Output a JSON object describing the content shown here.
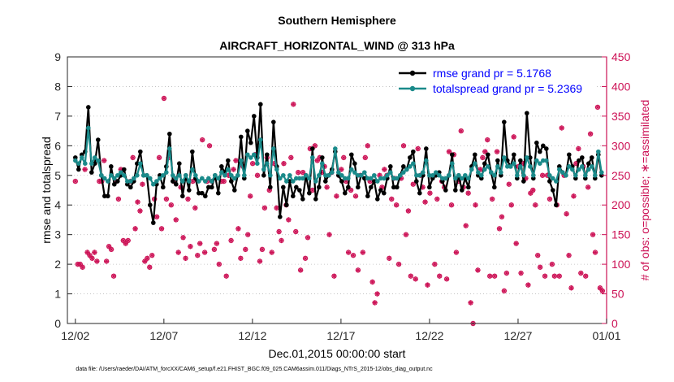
{
  "chart_data": {
    "type": "line",
    "title": "Southern Hemisphere",
    "subtitle": "AIRCRAFT_HORIZONTAL_WIND @ 313 hPa",
    "xlabel": "Dec.01,2015 00:00:00 start",
    "ylabel": "rmse and totalspread",
    "ylabel_right": "# of obs: o=possible; ∗=assimilated",
    "footnote": "data file: /Users/raeder/DAI/ATM_forcXX/CAM6_setup/f.e21.FHIST_BGC.f09_025.CAM6assim.011/Diags_NTrS_2015-12/obs_diag_output.nc",
    "x_ticks": [
      "12/02",
      "12/07",
      "12/12",
      "12/17",
      "12/22",
      "12/27",
      "01/01"
    ],
    "x_tick_days": [
      1,
      6,
      11,
      16,
      21,
      26,
      31
    ],
    "xlim": [
      0.55,
      31
    ],
    "ylim": [
      0,
      9
    ],
    "y_ticks": [
      "0",
      "1",
      "2",
      "3",
      "4",
      "5",
      "6",
      "7",
      "8",
      "9"
    ],
    "ylim_right": [
      0,
      450
    ],
    "y_ticks_right": [
      "0",
      "50",
      "100",
      "150",
      "200",
      "250",
      "300",
      "350",
      "400",
      "450"
    ],
    "colors": {
      "rmse": "#000000",
      "spread": "#1a8a8a",
      "obs": "#cc1155",
      "legend_text": "#0000ff"
    },
    "series": [
      {
        "name": "rmse grand pr = 5.1768",
        "key": "rmse",
        "values": [
          5.6,
          5.2,
          5.7,
          5.8,
          7.3,
          5.1,
          5.4,
          6.2,
          5.0,
          4.3,
          4.3,
          5.3,
          4.7,
          4.8,
          5.0,
          5.2,
          4.7,
          4.6,
          4.8,
          5.4,
          5.8,
          5.0,
          5.0,
          4.0,
          3.4,
          4.7,
          5.0,
          4.6,
          5.3,
          6.4,
          4.8,
          4.7,
          5.4,
          4.3,
          5.0,
          4.5,
          5.8,
          4.9,
          4.4,
          4.4,
          4.3,
          4.6,
          4.6,
          5.0,
          4.4,
          5.3,
          5.1,
          5.5,
          4.8,
          4.5,
          5.0,
          6.3,
          4.9,
          6.5,
          6.1,
          7.0,
          5.6,
          7.4,
          5.0,
          5.7,
          4.6,
          6.8,
          5.3,
          3.6,
          4.6,
          4.0,
          4.8,
          4.3,
          4.6,
          4.5,
          4.2,
          5.0,
          4.4,
          5.9,
          4.2,
          4.6,
          5.6,
          4.8,
          5.0,
          5.2,
          5.8,
          5.0,
          4.8,
          4.4,
          4.6,
          5.7,
          5.4,
          4.6,
          5.0,
          4.9,
          4.3,
          4.6,
          4.8,
          4.2,
          4.5,
          4.4,
          4.9,
          5.3,
          4.6,
          4.6,
          5.0,
          5.3,
          5.2,
          5.6,
          5.8,
          4.8,
          4.4,
          5.0,
          5.9,
          4.6,
          4.9,
          5.0,
          5.1,
          4.8,
          4.5,
          5.0,
          5.7,
          4.5,
          5.0,
          4.5,
          4.9,
          4.6,
          5.3,
          5.7,
          5.0,
          4.9,
          5.4,
          5.7,
          5.1,
          4.6,
          5.5,
          5.0,
          6.8,
          5.5,
          5.3,
          5.7,
          4.9,
          5.5,
          4.8,
          7.1,
          5.6,
          4.9,
          6.1,
          5.8,
          6.0,
          5.9,
          4.8,
          4.5,
          4.0,
          5.3,
          5.1,
          5.0,
          5.7,
          5.3,
          4.9,
          5.5,
          5.6,
          4.9,
          5.4,
          5.6,
          4.9,
          5.7,
          5.0
        ]
      },
      {
        "name": "totalspread grand pr = 5.2369",
        "key": "spread",
        "values": [
          5.5,
          5.4,
          5.6,
          5.4,
          6.6,
          5.4,
          5.6,
          5.5,
          5.0,
          4.9,
          4.8,
          5.0,
          4.9,
          5.0,
          5.1,
          5.0,
          4.8,
          4.8,
          4.9,
          5.0,
          5.4,
          5.0,
          5.0,
          4.9,
          4.7,
          4.8,
          4.9,
          5.0,
          5.1,
          5.9,
          5.0,
          4.9,
          5.0,
          4.8,
          5.0,
          4.8,
          5.2,
          5.0,
          4.8,
          4.9,
          4.8,
          4.9,
          4.8,
          5.0,
          4.9,
          5.1,
          5.0,
          5.2,
          5.0,
          4.9,
          5.0,
          5.5,
          5.0,
          5.7,
          5.6,
          5.7,
          5.4,
          6.2,
          5.2,
          5.4,
          5.0,
          5.9,
          5.2,
          4.9,
          5.0,
          4.8,
          5.0,
          4.8,
          4.9,
          4.9,
          4.9,
          5.0,
          4.9,
          5.6,
          4.8,
          5.0,
          5.4,
          5.0,
          5.0,
          5.1,
          5.9,
          5.1,
          5.0,
          4.9,
          4.9,
          5.2,
          5.1,
          5.0,
          5.0,
          5.1,
          4.9,
          4.9,
          5.0,
          4.8,
          4.9,
          4.9,
          5.0,
          5.1,
          4.9,
          4.9,
          5.0,
          5.1,
          5.2,
          5.3,
          5.4,
          5.0,
          5.0,
          5.1,
          5.5,
          5.0,
          5.0,
          5.1,
          5.0,
          4.9,
          4.9,
          5.0,
          5.4,
          4.9,
          5.0,
          4.9,
          5.0,
          4.9,
          5.2,
          5.4,
          5.1,
          5.0,
          5.2,
          5.3,
          5.1,
          5.0,
          5.3,
          5.1,
          5.6,
          5.3,
          5.3,
          5.4,
          5.0,
          5.3,
          5.0,
          5.6,
          5.3,
          5.0,
          5.5,
          5.4,
          5.5,
          5.5,
          5.0,
          4.9,
          4.8,
          5.2,
          5.1,
          5.0,
          5.3,
          5.2,
          5.0,
          5.2,
          5.3,
          5.0,
          5.2,
          5.3,
          5.0,
          5.8,
          5.1
        ]
      }
    ],
    "obs_possible": [
      240,
      100,
      100,
      95,
      260,
      120,
      115,
      110,
      120,
      105,
      240,
      240,
      275,
      105,
      130,
      125,
      80,
      240,
      210,
      260,
      140,
      135,
      140,
      240,
      280,
      160,
      205,
      190,
      235,
      105,
      110,
      95,
      115,
      210,
      180,
      280,
      160,
      380,
      210,
      280,
      200,
      240,
      175,
      120,
      230,
      145,
      110,
      210,
      130,
      240,
      195,
      115,
      135,
      310,
      120,
      240,
      300,
      240,
      125,
      135,
      100,
      240,
      240,
      80,
      250,
      140,
      260,
      275,
      160,
      110,
      265,
      125,
      150,
      215,
      270,
      285,
      250,
      105,
      125,
      195,
      280,
      225,
      120,
      270,
      195,
      155,
      140,
      270,
      200,
      175,
      280,
      370,
      155,
      255,
      90,
      255,
      110,
      145,
      295,
      225,
      300,
      275,
      280,
      255,
      265,
      230,
      150,
      255,
      80,
      215,
      250,
      260,
      280,
      240,
      120,
      225,
      115,
      215,
      90,
      250,
      120,
      280,
      300,
      240,
      70,
      35,
      50,
      250,
      230,
      260,
      250,
      110,
      210,
      245,
      200,
      100,
      245,
      300,
      150,
      190,
      80,
      235,
      75,
      295,
      250,
      230,
      205,
      65,
      220,
      400,
      100,
      210,
      80,
      240,
      230,
      75,
      290,
      200,
      285,
      120,
      240,
      325,
      230,
      165,
      220,
      35,
      0,
      200,
      90,
      260,
      280,
      290,
      310,
      80,
      210,
      80,
      290,
      160,
      180,
      55,
      85,
      235,
      200,
      315,
      135,
      265,
      85,
      270,
      245,
      65,
      220,
      225,
      200,
      115,
      95,
      250,
      80,
      250,
      210,
      100,
      80,
      200,
      80,
      330,
      250,
      185,
      115,
      60,
      215,
      270,
      295,
      85,
      265,
      80,
      230,
      320,
      150,
      120,
      365,
      60,
      55
    ]
  }
}
